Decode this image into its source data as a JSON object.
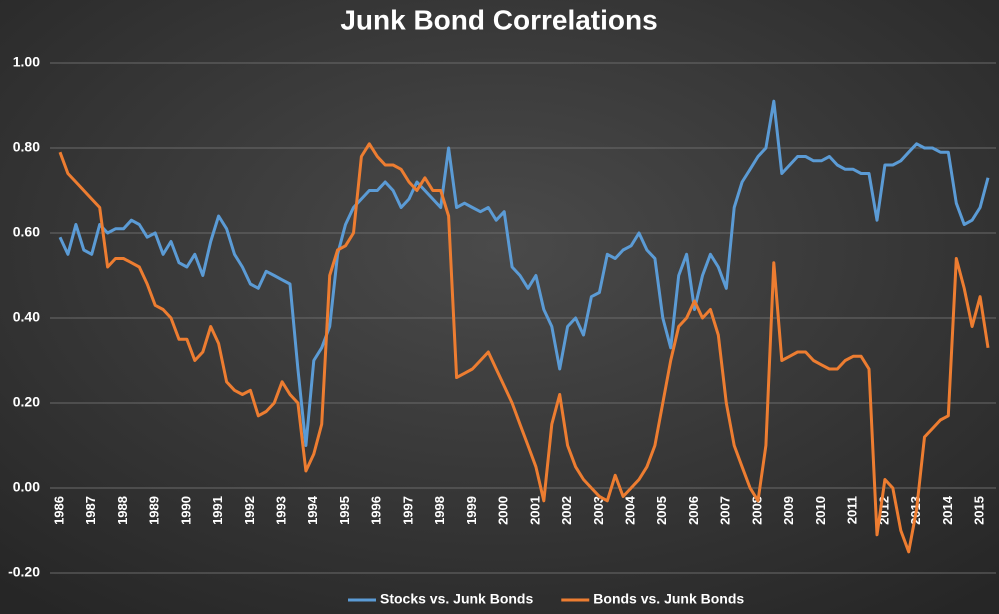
{
  "chart_data": {
    "type": "line",
    "title": "Junk Bond Correlations",
    "categories": [
      "1986",
      null,
      null,
      null,
      "1987",
      null,
      null,
      null,
      "1988",
      null,
      null,
      null,
      "1989",
      null,
      null,
      null,
      "1990",
      null,
      null,
      null,
      "1991",
      null,
      null,
      null,
      "1992",
      null,
      null,
      null,
      "1993",
      null,
      null,
      null,
      "1994",
      null,
      null,
      null,
      "1995",
      null,
      null,
      null,
      "1996",
      null,
      null,
      null,
      "1997",
      null,
      null,
      null,
      "1998",
      null,
      null,
      null,
      "1999",
      null,
      null,
      null,
      "2000",
      null,
      null,
      null,
      "2001",
      null,
      null,
      null,
      "2002",
      null,
      null,
      null,
      "2003",
      null,
      null,
      null,
      "2004",
      null,
      null,
      null,
      "2005",
      null,
      null,
      null,
      "2006",
      null,
      null,
      null,
      "2007",
      null,
      null,
      null,
      "2008",
      null,
      null,
      null,
      "2009",
      null,
      null,
      null,
      "2010",
      null,
      null,
      null,
      "2011",
      null,
      null,
      null,
      "2012",
      null,
      null,
      null,
      "2013",
      null,
      null,
      null,
      "2014",
      null,
      null,
      null,
      "2015",
      null
    ],
    "series": [
      {
        "name": "Stocks vs. Junk Bonds",
        "color": "#5b9bd5",
        "values": [
          0.59,
          0.55,
          0.62,
          0.56,
          0.55,
          0.62,
          0.6,
          0.61,
          0.61,
          0.63,
          0.62,
          0.59,
          0.6,
          0.55,
          0.58,
          0.53,
          0.52,
          0.55,
          0.5,
          0.58,
          0.64,
          0.61,
          0.55,
          0.52,
          0.48,
          0.47,
          0.51,
          0.5,
          0.49,
          0.48,
          0.28,
          0.1,
          0.3,
          0.33,
          0.38,
          0.55,
          0.62,
          0.66,
          0.68,
          0.7,
          0.7,
          0.72,
          0.7,
          0.66,
          0.68,
          0.72,
          0.7,
          0.68,
          0.66,
          0.8,
          0.66,
          0.67,
          0.66,
          0.65,
          0.66,
          0.63,
          0.65,
          0.52,
          0.5,
          0.47,
          0.5,
          0.42,
          0.38,
          0.28,
          0.38,
          0.4,
          0.36,
          0.45,
          0.46,
          0.55,
          0.54,
          0.56,
          0.57,
          0.6,
          0.56,
          0.54,
          0.4,
          0.33,
          0.5,
          0.55,
          0.42,
          0.5,
          0.55,
          0.52,
          0.47,
          0.66,
          0.72,
          0.75,
          0.78,
          0.8,
          0.91,
          0.74,
          0.76,
          0.78,
          0.78,
          0.77,
          0.77,
          0.78,
          0.76,
          0.75,
          0.75,
          0.74,
          0.74,
          0.63,
          0.76,
          0.76,
          0.77,
          0.79,
          0.81,
          0.8,
          0.8,
          0.79,
          0.79,
          0.67,
          0.62,
          0.63,
          0.66,
          0.73
        ]
      },
      {
        "name": "Bonds vs. Junk Bonds",
        "color": "#ed7d31",
        "values": [
          0.79,
          0.74,
          0.72,
          0.7,
          0.68,
          0.66,
          0.52,
          0.54,
          0.54,
          0.53,
          0.52,
          0.48,
          0.43,
          0.42,
          0.4,
          0.35,
          0.35,
          0.3,
          0.32,
          0.38,
          0.34,
          0.25,
          0.23,
          0.22,
          0.23,
          0.17,
          0.18,
          0.2,
          0.25,
          0.22,
          0.2,
          0.04,
          0.08,
          0.15,
          0.5,
          0.56,
          0.57,
          0.6,
          0.78,
          0.81,
          0.78,
          0.76,
          0.76,
          0.75,
          0.72,
          0.7,
          0.73,
          0.7,
          0.7,
          0.64,
          0.26,
          0.27,
          0.28,
          0.3,
          0.32,
          0.28,
          0.24,
          0.2,
          0.15,
          0.1,
          0.05,
          -0.03,
          0.15,
          0.22,
          0.1,
          0.05,
          0.02,
          0.0,
          -0.02,
          -0.03,
          0.03,
          -0.02,
          0.0,
          0.02,
          0.05,
          0.1,
          0.2,
          0.3,
          0.38,
          0.4,
          0.44,
          0.4,
          0.42,
          0.36,
          0.2,
          0.1,
          0.05,
          0.0,
          -0.03,
          0.1,
          0.53,
          0.3,
          0.31,
          0.32,
          0.32,
          0.3,
          0.29,
          0.28,
          0.28,
          0.3,
          0.31,
          0.31,
          0.28,
          -0.11,
          0.02,
          0.0,
          -0.1,
          -0.15,
          -0.05,
          0.12,
          0.14,
          0.16,
          0.17,
          0.54,
          0.47,
          0.38,
          0.45,
          0.33
        ]
      }
    ],
    "ylim": [
      -0.2,
      1.0
    ],
    "yticks": [
      {
        "value": -0.2,
        "label": "-0.20"
      },
      {
        "value": 0,
        "label": "0.00"
      },
      {
        "value": 0.2,
        "label": "0.20"
      },
      {
        "value": 0.4,
        "label": "0.40"
      },
      {
        "value": 0.6,
        "label": "0.60"
      },
      {
        "value": 0.8,
        "label": "0.80"
      },
      {
        "value": 1.0,
        "label": "1.00"
      }
    ],
    "grid": true,
    "legend": "bottom"
  }
}
